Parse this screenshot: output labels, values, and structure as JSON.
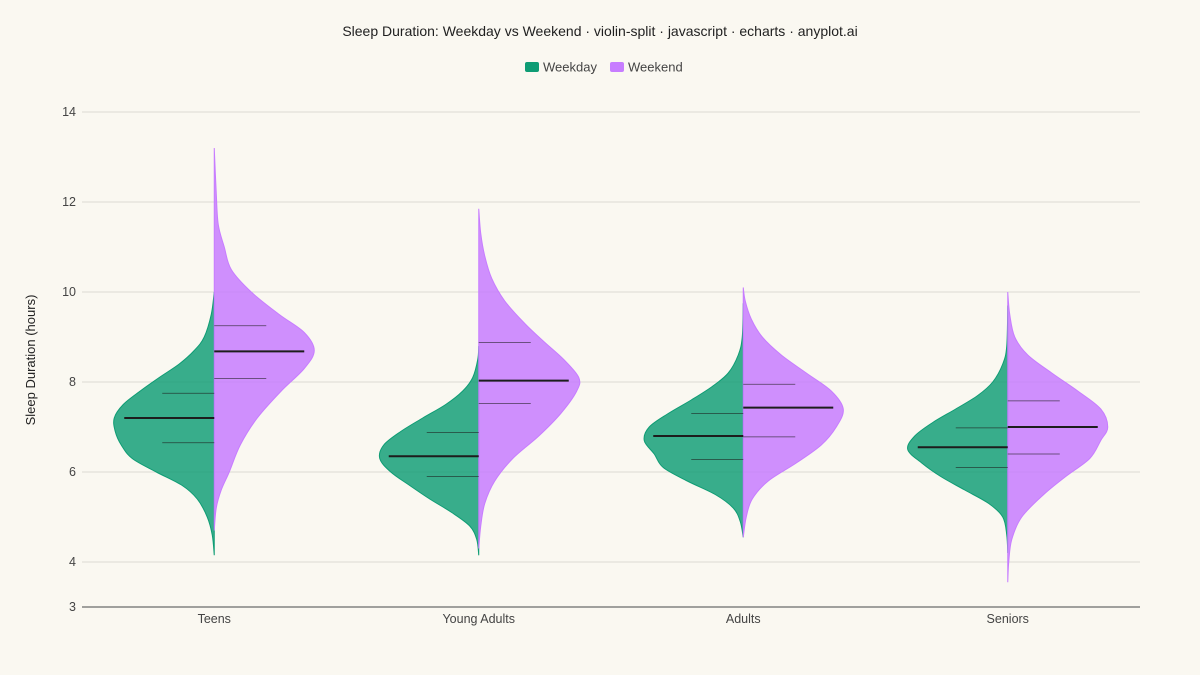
{
  "chart_data": {
    "type": "violin-split",
    "title": "Sleep Duration: Weekday vs Weekend · violin-split · javascript · echarts · anyplot.ai",
    "ylabel": "Sleep Duration (hours)",
    "xlabel": "",
    "ylim": [
      3,
      14
    ],
    "yticks": [
      3,
      4,
      6,
      8,
      10,
      12,
      14
    ],
    "grid": true,
    "legend_position": "top-center",
    "categories": [
      "Teens",
      "Young Adults",
      "Adults",
      "Seniors"
    ],
    "series": [
      {
        "name": "Weekday",
        "color": "#0E9C74",
        "side": "left",
        "groups": [
          {
            "category": "Teens",
            "median": 7.2,
            "q1": 6.65,
            "q3": 7.75,
            "min": 4.15,
            "max": 10.0,
            "density": [
              [
                4.15,
                0.0
              ],
              [
                4.6,
                0.02
              ],
              [
                5.0,
                0.07
              ],
              [
                5.4,
                0.17
              ],
              [
                5.7,
                0.32
              ],
              [
                6.0,
                0.58
              ],
              [
                6.3,
                0.82
              ],
              [
                6.6,
                0.93
              ],
              [
                6.9,
                0.99
              ],
              [
                7.2,
                1.0
              ],
              [
                7.5,
                0.91
              ],
              [
                7.8,
                0.74
              ],
              [
                8.1,
                0.55
              ],
              [
                8.4,
                0.35
              ],
              [
                8.7,
                0.2
              ],
              [
                9.0,
                0.1
              ],
              [
                9.5,
                0.03
              ],
              [
                10.0,
                0.0
              ]
            ]
          },
          {
            "category": "Young Adults",
            "median": 6.35,
            "q1": 5.9,
            "q3": 6.88,
            "min": 4.15,
            "max": 8.8,
            "density": [
              [
                4.15,
                0.0
              ],
              [
                4.5,
                0.02
              ],
              [
                4.8,
                0.09
              ],
              [
                5.1,
                0.27
              ],
              [
                5.4,
                0.49
              ],
              [
                5.7,
                0.69
              ],
              [
                6.0,
                0.88
              ],
              [
                6.3,
                0.99
              ],
              [
                6.6,
                0.95
              ],
              [
                6.9,
                0.78
              ],
              [
                7.2,
                0.56
              ],
              [
                7.5,
                0.33
              ],
              [
                7.8,
                0.16
              ],
              [
                8.1,
                0.06
              ],
              [
                8.5,
                0.01
              ],
              [
                8.8,
                0.0
              ]
            ]
          },
          {
            "category": "Adults",
            "median": 6.8,
            "q1": 6.28,
            "q3": 7.3,
            "min": 4.55,
            "max": 9.75,
            "density": [
              [
                4.55,
                0.0
              ],
              [
                4.9,
                0.03
              ],
              [
                5.2,
                0.1
              ],
              [
                5.5,
                0.28
              ],
              [
                5.8,
                0.56
              ],
              [
                6.1,
                0.8
              ],
              [
                6.4,
                0.89
              ],
              [
                6.7,
                0.99
              ],
              [
                7.0,
                0.94
              ],
              [
                7.3,
                0.75
              ],
              [
                7.6,
                0.52
              ],
              [
                7.9,
                0.31
              ],
              [
                8.2,
                0.15
              ],
              [
                8.6,
                0.05
              ],
              [
                9.0,
                0.01
              ],
              [
                9.75,
                0.0
              ]
            ]
          },
          {
            "category": "Seniors",
            "median": 6.55,
            "q1": 6.1,
            "q3": 6.98,
            "min": 4.2,
            "max": 9.7,
            "density": [
              [
                4.2,
                0.0
              ],
              [
                4.6,
                0.01
              ],
              [
                5.0,
                0.05
              ],
              [
                5.3,
                0.19
              ],
              [
                5.6,
                0.43
              ],
              [
                5.9,
                0.67
              ],
              [
                6.2,
                0.86
              ],
              [
                6.5,
                1.0
              ],
              [
                6.8,
                0.93
              ],
              [
                7.1,
                0.75
              ],
              [
                7.4,
                0.52
              ],
              [
                7.7,
                0.3
              ],
              [
                8.0,
                0.15
              ],
              [
                8.4,
                0.05
              ],
              [
                8.8,
                0.01
              ],
              [
                9.7,
                0.0
              ]
            ]
          }
        ]
      },
      {
        "name": "Weekend",
        "color": "#C77DFF",
        "side": "right",
        "groups": [
          {
            "category": "Teens",
            "median": 8.68,
            "q1": 8.08,
            "q3": 9.25,
            "min": 4.7,
            "max": 13.2,
            "density": [
              [
                4.7,
                0.0
              ],
              [
                5.2,
                0.02
              ],
              [
                5.6,
                0.07
              ],
              [
                6.0,
                0.15
              ],
              [
                6.6,
                0.26
              ],
              [
                7.2,
                0.43
              ],
              [
                7.8,
                0.67
              ],
              [
                8.3,
                0.9
              ],
              [
                8.7,
                1.0
              ],
              [
                9.1,
                0.9
              ],
              [
                9.5,
                0.65
              ],
              [
                10.0,
                0.37
              ],
              [
                10.5,
                0.17
              ],
              [
                11.0,
                0.1
              ],
              [
                11.5,
                0.04
              ],
              [
                12.2,
                0.02
              ],
              [
                13.2,
                0.0
              ]
            ]
          },
          {
            "category": "Young Adults",
            "median": 8.03,
            "q1": 7.52,
            "q3": 8.88,
            "min": 4.3,
            "max": 11.85,
            "density": [
              [
                4.3,
                0.0
              ],
              [
                4.8,
                0.02
              ],
              [
                5.3,
                0.06
              ],
              [
                5.8,
                0.16
              ],
              [
                6.3,
                0.34
              ],
              [
                6.8,
                0.6
              ],
              [
                7.3,
                0.82
              ],
              [
                7.8,
                0.98
              ],
              [
                8.1,
                1.0
              ],
              [
                8.5,
                0.85
              ],
              [
                8.9,
                0.65
              ],
              [
                9.3,
                0.46
              ],
              [
                9.8,
                0.26
              ],
              [
                10.3,
                0.13
              ],
              [
                10.8,
                0.06
              ],
              [
                11.3,
                0.02
              ],
              [
                11.85,
                0.0
              ]
            ]
          },
          {
            "category": "Adults",
            "median": 7.43,
            "q1": 6.78,
            "q3": 7.95,
            "min": 4.55,
            "max": 10.1,
            "density": [
              [
                4.55,
                0.0
              ],
              [
                5.0,
                0.03
              ],
              [
                5.4,
                0.09
              ],
              [
                5.8,
                0.25
              ],
              [
                6.2,
                0.53
              ],
              [
                6.6,
                0.78
              ],
              [
                7.0,
                0.93
              ],
              [
                7.4,
                1.0
              ],
              [
                7.8,
                0.88
              ],
              [
                8.2,
                0.63
              ],
              [
                8.6,
                0.38
              ],
              [
                9.0,
                0.19
              ],
              [
                9.4,
                0.08
              ],
              [
                9.8,
                0.02
              ],
              [
                10.1,
                0.0
              ]
            ]
          },
          {
            "category": "Seniors",
            "median": 7.0,
            "q1": 6.4,
            "q3": 7.58,
            "min": 3.55,
            "max": 10.0,
            "density": [
              [
                3.55,
                0.0
              ],
              [
                4.0,
                0.01
              ],
              [
                4.5,
                0.04
              ],
              [
                5.0,
                0.14
              ],
              [
                5.5,
                0.36
              ],
              [
                5.9,
                0.58
              ],
              [
                6.3,
                0.82
              ],
              [
                6.7,
                0.93
              ],
              [
                7.0,
                1.0
              ],
              [
                7.4,
                0.93
              ],
              [
                7.8,
                0.7
              ],
              [
                8.2,
                0.44
              ],
              [
                8.6,
                0.2
              ],
              [
                9.0,
                0.07
              ],
              [
                9.5,
                0.02
              ],
              [
                10.0,
                0.0
              ]
            ]
          }
        ]
      }
    ]
  }
}
